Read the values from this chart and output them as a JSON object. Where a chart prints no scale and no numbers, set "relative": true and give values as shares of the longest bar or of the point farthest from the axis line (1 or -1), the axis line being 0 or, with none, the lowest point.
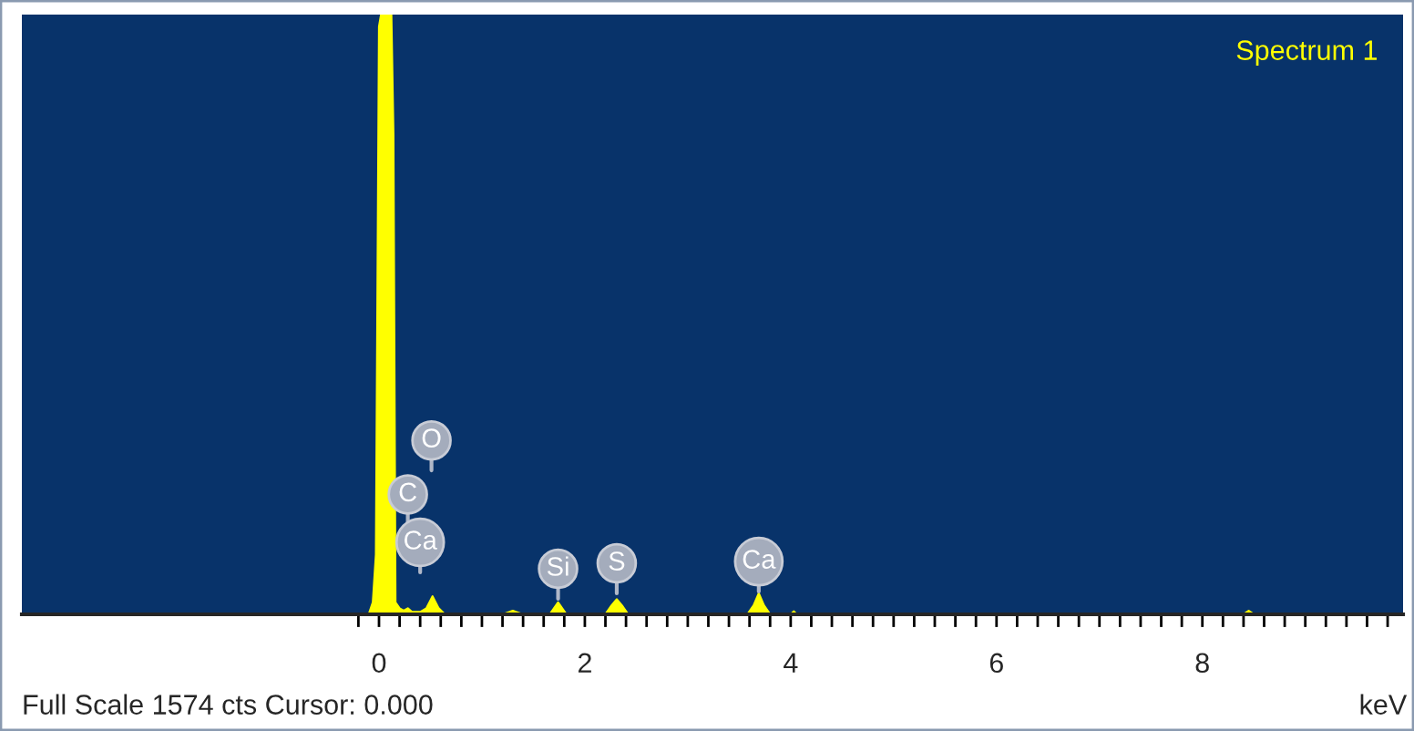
{
  "chart_data": {
    "type": "area",
    "relative": true,
    "xlabel": "keV",
    "legend": "top right",
    "xlim": [
      -3.47,
      9.95
    ],
    "xticks": [
      {
        "value": -0.2,
        "label": null
      },
      0,
      {
        "value": 0.2,
        "label": null
      },
      {
        "value": 0.4,
        "label": null
      },
      {
        "value": 0.6,
        "label": null
      },
      {
        "value": 0.8,
        "label": null
      },
      {
        "value": 1,
        "label": null
      },
      {
        "value": 1.2,
        "label": null
      },
      {
        "value": 1.4,
        "label": null
      },
      {
        "value": 1.6,
        "label": null
      },
      {
        "value": 1.8,
        "label": null
      },
      2,
      {
        "value": 2.2,
        "label": null
      },
      {
        "value": 2.4,
        "label": null
      },
      {
        "value": 2.6,
        "label": null
      },
      {
        "value": 2.8,
        "label": null
      },
      {
        "value": 3,
        "label": null
      },
      {
        "value": 3.2,
        "label": null
      },
      {
        "value": 3.4,
        "label": null
      },
      {
        "value": 3.6,
        "label": null
      },
      {
        "value": 3.8,
        "label": null
      },
      4,
      {
        "value": 4.2,
        "label": null
      },
      {
        "value": 4.4,
        "label": null
      },
      {
        "value": 4.6,
        "label": null
      },
      {
        "value": 4.8,
        "label": null
      },
      {
        "value": 5,
        "label": null
      },
      {
        "value": 5.2,
        "label": null
      },
      {
        "value": 5.4,
        "label": null
      },
      {
        "value": 5.6,
        "label": null
      },
      {
        "value": 5.8,
        "label": null
      },
      6,
      {
        "value": 6.2,
        "label": null
      },
      {
        "value": 6.4,
        "label": null
      },
      {
        "value": 6.6,
        "label": null
      },
      {
        "value": 6.8,
        "label": null
      },
      {
        "value": 7,
        "label": null
      },
      {
        "value": 7.2,
        "label": null
      },
      {
        "value": 7.4,
        "label": null
      },
      {
        "value": 7.6,
        "label": null
      },
      {
        "value": 7.8,
        "label": null
      },
      8,
      {
        "value": 8.2,
        "label": null
      },
      {
        "value": 8.4,
        "label": null
      },
      {
        "value": 8.6,
        "label": null
      },
      {
        "value": 8.8,
        "label": null
      },
      {
        "value": 9,
        "label": null
      },
      {
        "value": 9.2,
        "label": null
      },
      {
        "value": 9.4,
        "label": null
      },
      {
        "value": 9.6,
        "label": null
      },
      {
        "value": 9.8,
        "label": null
      }
    ],
    "series": [
      {
        "name": "Spectrum 1",
        "color": "#ffff00",
        "x": [
          -0.1,
          -0.06,
          -0.03,
          0.0,
          0.02,
          0.12,
          0.14,
          0.16,
          0.2,
          0.24,
          0.28,
          0.32,
          0.4,
          0.46,
          0.52,
          0.58,
          0.64,
          1.2,
          1.27,
          1.3,
          1.33,
          1.4,
          1.66,
          1.7,
          1.74,
          1.78,
          1.82,
          2.2,
          2.26,
          2.31,
          2.36,
          2.42,
          3.58,
          3.64,
          3.69,
          3.74,
          3.8,
          4.0,
          4.03,
          4.06,
          8.4,
          8.45,
          8.5,
          9.95
        ],
        "values": [
          0,
          0.02,
          0.1,
          0.98,
          1,
          1,
          0.8,
          0.02,
          0.01,
          0.006,
          0.01,
          0.004,
          0.004,
          0.01,
          0.03,
          0.01,
          0,
          0,
          0.004,
          0.006,
          0.004,
          0,
          0,
          0.01,
          0.02,
          0.01,
          0,
          0,
          0.015,
          0.025,
          0.015,
          0,
          0,
          0.015,
          0.035,
          0.015,
          0,
          0,
          0.005,
          0,
          0,
          0.006,
          0,
          0
        ]
      }
    ],
    "annotations": [
      {
        "text": "O",
        "x": 0.51,
        "y": 0.29
      },
      {
        "text": "C",
        "x": 0.28,
        "y": 0.2
      },
      {
        "text": "Ca",
        "x": 0.4,
        "y": 0.12
      },
      {
        "text": "Si",
        "x": 1.74,
        "y": 0.076
      },
      {
        "text": "S",
        "x": 2.31,
        "y": 0.085
      },
      {
        "text": "Ca",
        "x": 3.69,
        "y": 0.088
      },
      "Full Scale 1574 cts Cursor: 0.000"
    ]
  }
}
